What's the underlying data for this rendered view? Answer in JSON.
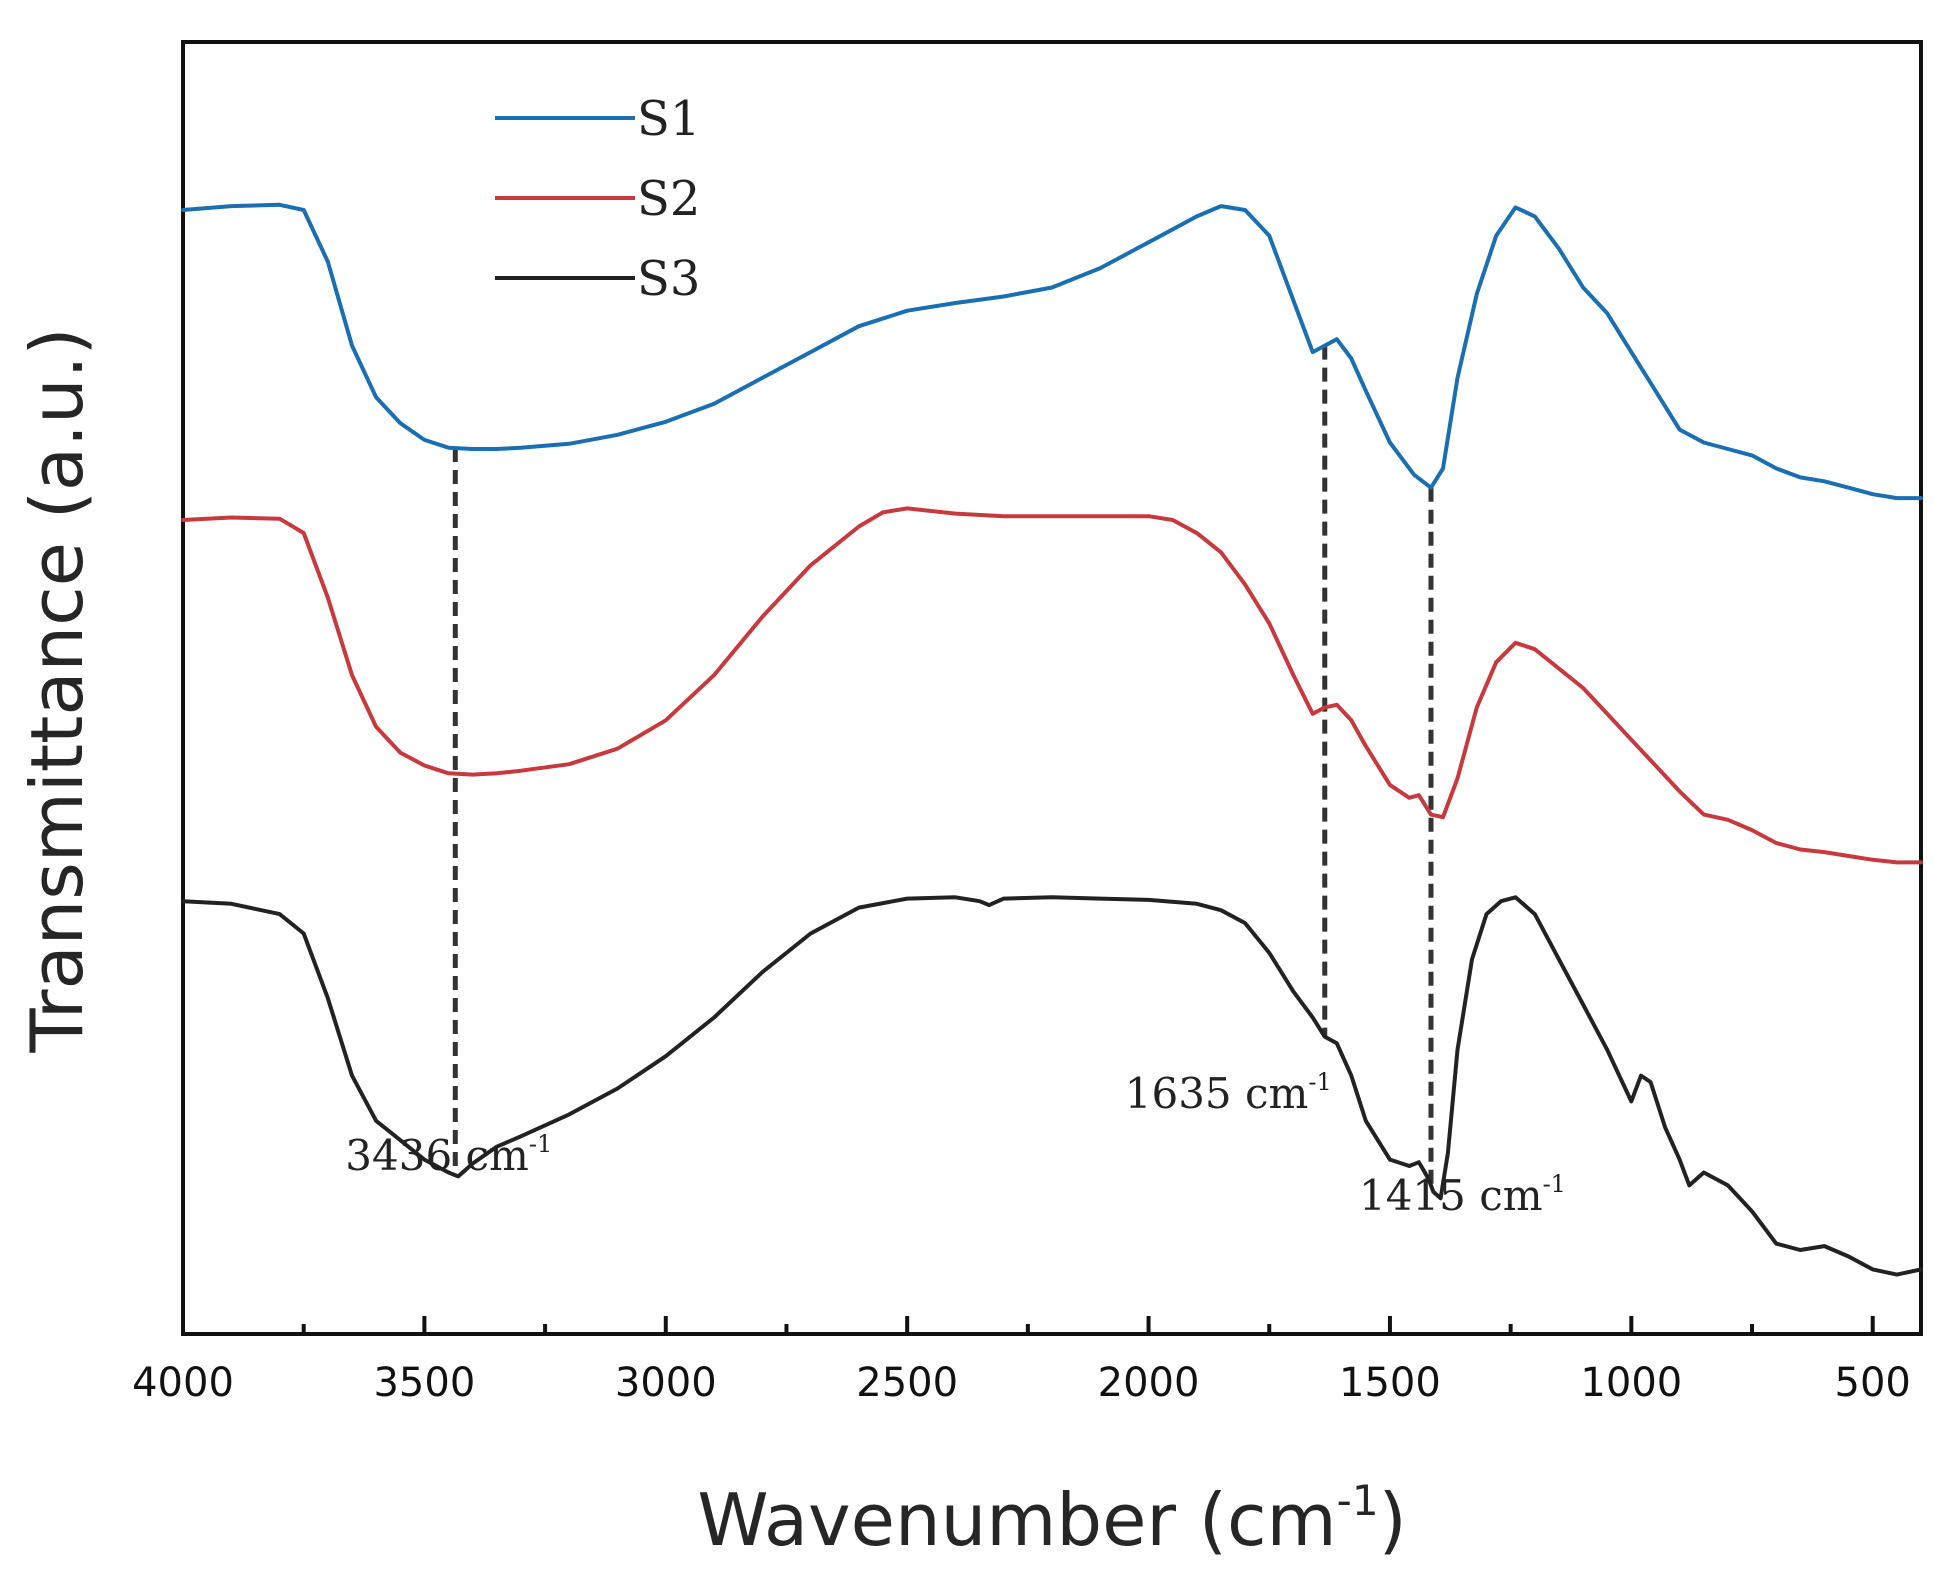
{
  "chart_data": {
    "type": "line",
    "title": "",
    "xlabel_main": "Wavenumber (cm",
    "xlabel_sup": "-1",
    "xlabel_close": ")",
    "ylabel": "Transmittance (a.u.)",
    "xlim": [
      4000,
      400
    ],
    "ylim": [
      0,
      100
    ],
    "xticks": [
      4000,
      3500,
      3000,
      2500,
      2000,
      1500,
      1000,
      500
    ],
    "xtick_labels": [
      "4000",
      "3500",
      "3000",
      "2500",
      "2000",
      "1500",
      "1000",
      "500"
    ],
    "yticks_shown": false,
    "legend_position": "top-left",
    "series": [
      {
        "name": "S1",
        "color": "#1a6fb3",
        "points": [
          [
            4000,
            87.0
          ],
          [
            3900,
            87.3
          ],
          [
            3800,
            87.4
          ],
          [
            3750,
            87.0
          ],
          [
            3700,
            83.0
          ],
          [
            3650,
            76.5
          ],
          [
            3600,
            72.5
          ],
          [
            3550,
            70.5
          ],
          [
            3500,
            69.2
          ],
          [
            3450,
            68.6
          ],
          [
            3400,
            68.5
          ],
          [
            3350,
            68.5
          ],
          [
            3300,
            68.6
          ],
          [
            3200,
            68.9
          ],
          [
            3100,
            69.6
          ],
          [
            3000,
            70.6
          ],
          [
            2900,
            72.0
          ],
          [
            2800,
            74.0
          ],
          [
            2700,
            76.0
          ],
          [
            2600,
            78.0
          ],
          [
            2500,
            79.2
          ],
          [
            2400,
            79.8
          ],
          [
            2300,
            80.3
          ],
          [
            2200,
            81.0
          ],
          [
            2100,
            82.5
          ],
          [
            2000,
            84.5
          ],
          [
            1900,
            86.5
          ],
          [
            1850,
            87.3
          ],
          [
            1800,
            87.0
          ],
          [
            1750,
            85.0
          ],
          [
            1700,
            80.0
          ],
          [
            1660,
            76.0
          ],
          [
            1635,
            76.5
          ],
          [
            1610,
            77.0
          ],
          [
            1580,
            75.5
          ],
          [
            1550,
            73.0
          ],
          [
            1500,
            69.0
          ],
          [
            1450,
            66.5
          ],
          [
            1415,
            65.5
          ],
          [
            1390,
            67.0
          ],
          [
            1360,
            74.0
          ],
          [
            1320,
            80.5
          ],
          [
            1280,
            85.0
          ],
          [
            1240,
            87.2
          ],
          [
            1200,
            86.5
          ],
          [
            1150,
            84.0
          ],
          [
            1100,
            81.0
          ],
          [
            1050,
            79.0
          ],
          [
            1000,
            76.0
          ],
          [
            950,
            73.0
          ],
          [
            900,
            70.0
          ],
          [
            850,
            69.0
          ],
          [
            800,
            68.5
          ],
          [
            750,
            68.0
          ],
          [
            700,
            67.0
          ],
          [
            650,
            66.3
          ],
          [
            600,
            66.0
          ],
          [
            550,
            65.5
          ],
          [
            500,
            65.0
          ],
          [
            450,
            64.7
          ],
          [
            400,
            64.7
          ]
        ]
      },
      {
        "name": "S2",
        "color": "#c8393d",
        "points": [
          [
            4000,
            63.0
          ],
          [
            3900,
            63.2
          ],
          [
            3800,
            63.1
          ],
          [
            3750,
            62.0
          ],
          [
            3700,
            57.0
          ],
          [
            3650,
            51.0
          ],
          [
            3600,
            47.0
          ],
          [
            3550,
            45.0
          ],
          [
            3500,
            44.0
          ],
          [
            3450,
            43.4
          ],
          [
            3400,
            43.3
          ],
          [
            3350,
            43.4
          ],
          [
            3300,
            43.6
          ],
          [
            3200,
            44.1
          ],
          [
            3100,
            45.3
          ],
          [
            3000,
            47.5
          ],
          [
            2900,
            51.0
          ],
          [
            2800,
            55.5
          ],
          [
            2700,
            59.5
          ],
          [
            2600,
            62.5
          ],
          [
            2550,
            63.6
          ],
          [
            2500,
            63.9
          ],
          [
            2450,
            63.7
          ],
          [
            2400,
            63.5
          ],
          [
            2300,
            63.3
          ],
          [
            2200,
            63.3
          ],
          [
            2100,
            63.3
          ],
          [
            2000,
            63.3
          ],
          [
            1950,
            63.0
          ],
          [
            1900,
            62.0
          ],
          [
            1850,
            60.5
          ],
          [
            1800,
            58.0
          ],
          [
            1750,
            55.0
          ],
          [
            1700,
            51.0
          ],
          [
            1660,
            48.0
          ],
          [
            1635,
            48.5
          ],
          [
            1610,
            48.7
          ],
          [
            1580,
            47.5
          ],
          [
            1550,
            45.5
          ],
          [
            1500,
            42.5
          ],
          [
            1460,
            41.5
          ],
          [
            1440,
            41.7
          ],
          [
            1415,
            40.2
          ],
          [
            1390,
            40.0
          ],
          [
            1360,
            43.0
          ],
          [
            1320,
            48.5
          ],
          [
            1280,
            52.0
          ],
          [
            1240,
            53.5
          ],
          [
            1200,
            53.0
          ],
          [
            1150,
            51.5
          ],
          [
            1100,
            50.0
          ],
          [
            1050,
            48.0
          ],
          [
            1000,
            46.0
          ],
          [
            950,
            44.0
          ],
          [
            900,
            42.0
          ],
          [
            850,
            40.2
          ],
          [
            800,
            39.8
          ],
          [
            750,
            39.0
          ],
          [
            700,
            38.0
          ],
          [
            650,
            37.5
          ],
          [
            600,
            37.3
          ],
          [
            550,
            37.0
          ],
          [
            500,
            36.7
          ],
          [
            450,
            36.5
          ],
          [
            400,
            36.5
          ]
        ]
      },
      {
        "name": "S3",
        "color": "#222222",
        "points": [
          [
            4000,
            33.5
          ],
          [
            3900,
            33.3
          ],
          [
            3800,
            32.5
          ],
          [
            3750,
            31.0
          ],
          [
            3700,
            26.0
          ],
          [
            3650,
            20.0
          ],
          [
            3600,
            16.5
          ],
          [
            3550,
            15.0
          ],
          [
            3500,
            13.5
          ],
          [
            3450,
            12.5
          ],
          [
            3430,
            12.2
          ],
          [
            3400,
            13.2
          ],
          [
            3350,
            14.5
          ],
          [
            3300,
            15.3
          ],
          [
            3200,
            17.0
          ],
          [
            3100,
            19.0
          ],
          [
            3000,
            21.5
          ],
          [
            2900,
            24.5
          ],
          [
            2800,
            28.0
          ],
          [
            2700,
            31.0
          ],
          [
            2600,
            33.0
          ],
          [
            2500,
            33.7
          ],
          [
            2400,
            33.8
          ],
          [
            2350,
            33.5
          ],
          [
            2330,
            33.2
          ],
          [
            2300,
            33.7
          ],
          [
            2200,
            33.8
          ],
          [
            2100,
            33.7
          ],
          [
            2000,
            33.6
          ],
          [
            1900,
            33.3
          ],
          [
            1850,
            32.8
          ],
          [
            1800,
            31.8
          ],
          [
            1750,
            29.5
          ],
          [
            1700,
            26.5
          ],
          [
            1660,
            24.5
          ],
          [
            1635,
            23.0
          ],
          [
            1610,
            22.5
          ],
          [
            1580,
            20.0
          ],
          [
            1550,
            16.5
          ],
          [
            1500,
            13.5
          ],
          [
            1460,
            13.0
          ],
          [
            1440,
            13.3
          ],
          [
            1420,
            12.0
          ],
          [
            1410,
            11.0
          ],
          [
            1395,
            10.5
          ],
          [
            1380,
            14.0
          ],
          [
            1360,
            22.0
          ],
          [
            1330,
            29.0
          ],
          [
            1300,
            32.5
          ],
          [
            1270,
            33.5
          ],
          [
            1240,
            33.8
          ],
          [
            1200,
            32.5
          ],
          [
            1150,
            29.0
          ],
          [
            1100,
            25.5
          ],
          [
            1050,
            22.0
          ],
          [
            1000,
            18.0
          ],
          [
            980,
            20.0
          ],
          [
            960,
            19.5
          ],
          [
            930,
            16.0
          ],
          [
            900,
            13.5
          ],
          [
            880,
            11.5
          ],
          [
            850,
            12.5
          ],
          [
            800,
            11.5
          ],
          [
            750,
            9.5
          ],
          [
            700,
            7.0
          ],
          [
            650,
            6.5
          ],
          [
            600,
            6.8
          ],
          [
            550,
            6.0
          ],
          [
            500,
            5.0
          ],
          [
            450,
            4.6
          ],
          [
            400,
            5.0
          ]
        ]
      }
    ],
    "annotations": [
      {
        "x": 3436,
        "text": "3436 cm",
        "sup": "-1"
      },
      {
        "x": 1635,
        "text": "1635 cm",
        "sup": "-1"
      },
      {
        "x": 1415,
        "text": "1415 cm",
        "sup": "-1"
      }
    ]
  }
}
